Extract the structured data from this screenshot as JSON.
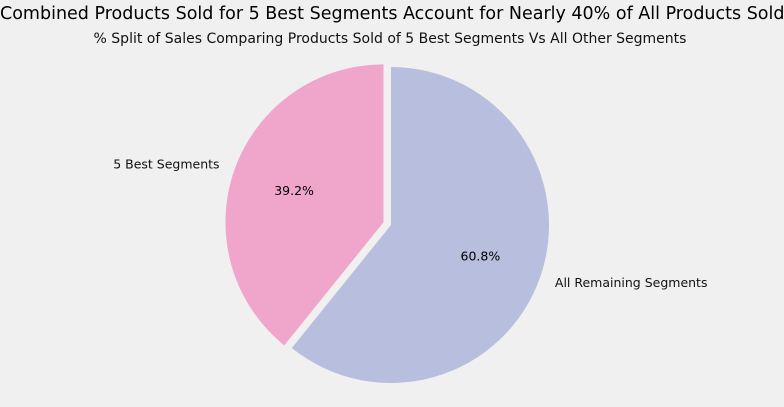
{
  "chart_data": {
    "type": "pie",
    "title": "Combined Products Sold for 5 Best Segments Account for Nearly 40% of All Products Sold",
    "subtitle": "% Split of Sales Comparing Products Sold of 5 Best Segments Vs All Other Segments",
    "slices": [
      {
        "label": "5 Best Segments",
        "value": 39.2,
        "pct_text": "39.2%",
        "color": "#f0a6cb",
        "exploded": true
      },
      {
        "label": "All Remaining Segments",
        "value": 60.8,
        "pct_text": "60.8%",
        "color": "#b8bede",
        "exploded": false
      }
    ]
  }
}
